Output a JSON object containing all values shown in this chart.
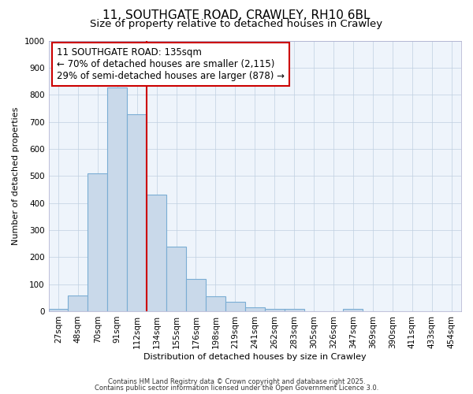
{
  "title1": "11, SOUTHGATE ROAD, CRAWLEY, RH10 6BL",
  "title2": "Size of property relative to detached houses in Crawley",
  "xlabel": "Distribution of detached houses by size in Crawley",
  "ylabel": "Number of detached properties",
  "categories": [
    "27sqm",
    "48sqm",
    "70sqm",
    "91sqm",
    "112sqm",
    "134sqm",
    "155sqm",
    "176sqm",
    "198sqm",
    "219sqm",
    "241sqm",
    "262sqm",
    "283sqm",
    "305sqm",
    "326sqm",
    "347sqm",
    "369sqm",
    "390sqm",
    "411sqm",
    "433sqm",
    "454sqm"
  ],
  "values": [
    10,
    57,
    508,
    828,
    727,
    430,
    240,
    120,
    55,
    35,
    15,
    10,
    10,
    0,
    0,
    8,
    0,
    0,
    0,
    0,
    0
  ],
  "bar_color": "#c9d9ea",
  "bar_edge_color": "#7aadd4",
  "vline_color": "#cc0000",
  "annotation_text": "11 SOUTHGATE ROAD: 135sqm\n← 70% of detached houses are smaller (2,115)\n29% of semi-detached houses are larger (878) →",
  "annotation_box_color": "#ffffff",
  "annotation_box_edge": "#cc0000",
  "ylim": [
    0,
    1000
  ],
  "grid_color": "#c0d0e0",
  "background_color": "#ffffff",
  "plot_bg_color": "#eef4fb",
  "footer1": "Contains HM Land Registry data © Crown copyright and database right 2025.",
  "footer2": "Contains public sector information licensed under the Open Government Licence 3.0.",
  "title_fontsize": 11,
  "subtitle_fontsize": 9.5,
  "annotation_fontsize": 8.5,
  "axis_label_fontsize": 8,
  "tick_fontsize": 7.5,
  "footer_fontsize": 6
}
